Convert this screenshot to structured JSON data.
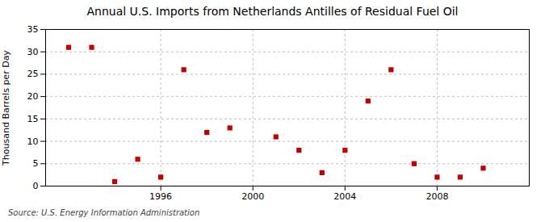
{
  "chart_data": {
    "type": "scatter",
    "title": "Annual U.S. Imports from Netherlands Antilles of Residual Fuel Oil",
    "ylabel": "Thousand Barrels per Day",
    "source": "Source: U.S. Energy Information Administration",
    "x": [
      1992,
      1993,
      1994,
      1995,
      1996,
      1997,
      1998,
      1999,
      2001,
      2002,
      2003,
      2004,
      2005,
      2006,
      2007,
      2008,
      2009,
      2010
    ],
    "values": [
      31,
      31,
      1,
      6,
      2,
      26,
      12,
      13,
      11,
      8,
      3,
      8,
      19,
      26,
      5,
      2,
      2,
      4
    ],
    "color": "#c00000",
    "marker": "square",
    "xlim": [
      1991,
      2012
    ],
    "xticks": [
      1996,
      2000,
      2004,
      2008
    ],
    "ylim": [
      0,
      35
    ],
    "yticks": [
      0,
      5,
      10,
      15,
      20,
      25,
      30,
      35
    ],
    "grid": true
  }
}
